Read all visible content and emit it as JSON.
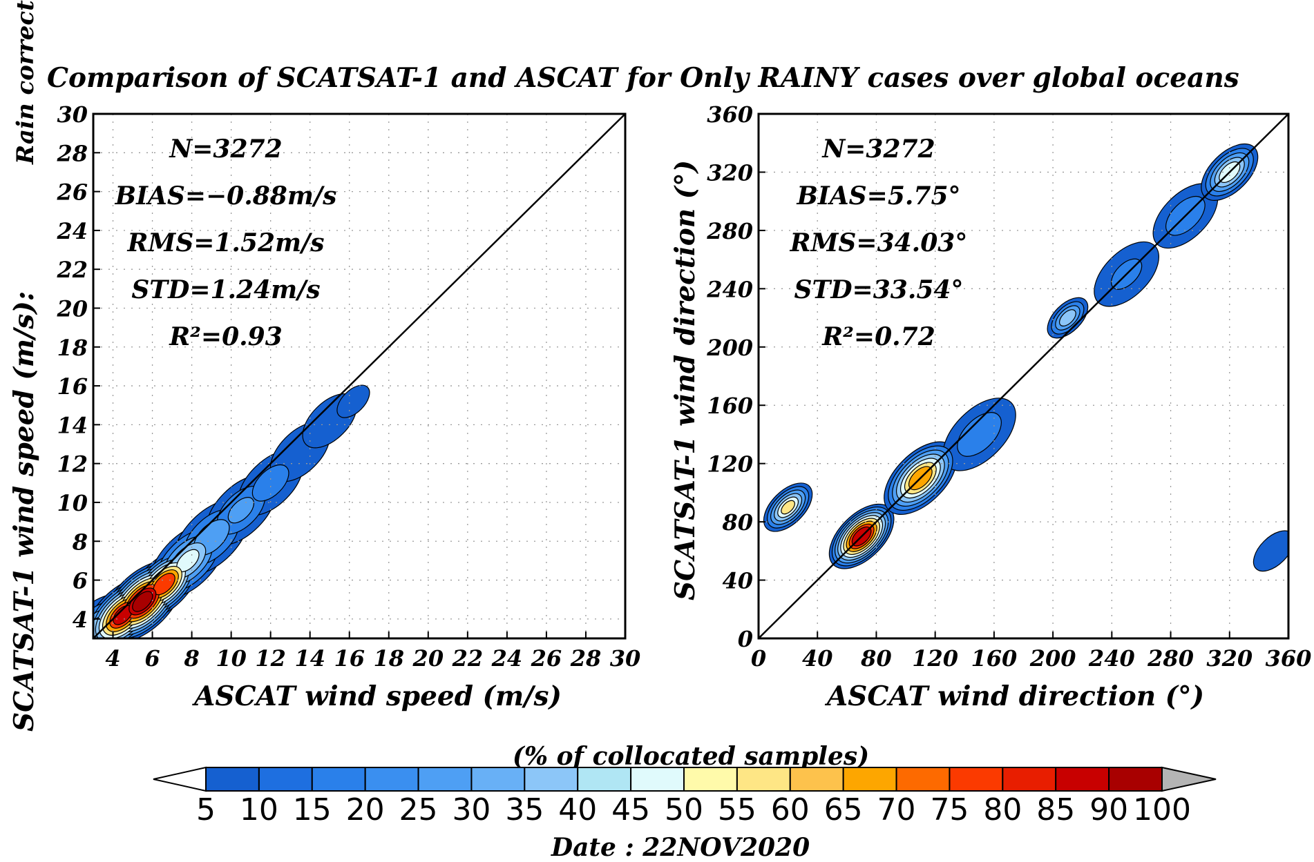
{
  "figure": {
    "suptitle": "Comparison of SCATSAT-1 and ASCAT for Only RAINY cases over global oceans",
    "side_label": "Rain corrected",
    "date_label": "Date : 22NOV2020"
  },
  "chart_data": [
    {
      "type": "heatmap",
      "name_id": "speed",
      "xlabel": "ASCAT wind speed (m/s)",
      "ylabel": "SCATSAT-1 wind speed (m/s):",
      "xlim": [
        3,
        30
      ],
      "ylim": [
        3,
        30
      ],
      "xticks": [
        "4",
        "6",
        "8",
        "10",
        "12",
        "14",
        "16",
        "18",
        "20",
        "22",
        "24",
        "26",
        "28",
        "30"
      ],
      "yticks": [
        "4",
        "6",
        "8",
        "10",
        "12",
        "14",
        "16",
        "18",
        "20",
        "22",
        "24",
        "26",
        "28",
        "30"
      ],
      "grid": true,
      "one_to_one_line": true,
      "stats": [
        "N=3272",
        "BIAS=−0.88m/s",
        "RMS=1.52m/s",
        "STD=1.24m/s",
        "R²=0.93"
      ],
      "density_ridge": [
        {
          "x": 3.2,
          "y": 3.6,
          "w": 1.2,
          "v": 35
        },
        {
          "x": 4.5,
          "y": 4.2,
          "w": 1.4,
          "v": 85
        },
        {
          "x": 5.5,
          "y": 4.9,
          "w": 1.5,
          "v": 95
        },
        {
          "x": 6.6,
          "y": 5.8,
          "w": 1.3,
          "v": 80
        },
        {
          "x": 7.8,
          "y": 7.0,
          "w": 1.4,
          "v": 45
        },
        {
          "x": 9.0,
          "y": 8.2,
          "w": 1.4,
          "v": 30
        },
        {
          "x": 10.5,
          "y": 9.6,
          "w": 1.3,
          "v": 25
        },
        {
          "x": 12.0,
          "y": 11.0,
          "w": 1.2,
          "v": 18
        },
        {
          "x": 13.5,
          "y": 12.6,
          "w": 1.1,
          "v": 12
        },
        {
          "x": 15.0,
          "y": 14.2,
          "w": 1.0,
          "v": 8
        },
        {
          "x": 16.2,
          "y": 15.2,
          "w": 0.6,
          "v": 5
        }
      ]
    },
    {
      "type": "heatmap",
      "name_id": "direction",
      "xlabel": "ASCAT wind direction (°)",
      "ylabel": "SCATSAT-1 wind direction (°)",
      "xlim": [
        0,
        360
      ],
      "ylim": [
        0,
        360
      ],
      "xticks": [
        "0",
        "40",
        "80",
        "120",
        "160",
        "200",
        "240",
        "280",
        "320",
        "360"
      ],
      "yticks": [
        "0",
        "40",
        "80",
        "120",
        "160",
        "200",
        "240",
        "280",
        "320",
        "360"
      ],
      "grid": true,
      "one_to_one_line": true,
      "stats": [
        "N=3272",
        "BIAS=5.75°",
        "RMS=34.03°",
        "STD=33.54°",
        "R²=0.72"
      ],
      "density_ridge": [
        {
          "x": 20,
          "y": 90,
          "w": 12,
          "v": 55
        },
        {
          "x": 70,
          "y": 70,
          "w": 16,
          "v": 90
        },
        {
          "x": 110,
          "y": 110,
          "w": 18,
          "v": 70
        },
        {
          "x": 150,
          "y": 140,
          "w": 18,
          "v": 20
        },
        {
          "x": 210,
          "y": 220,
          "w": 10,
          "v": 40
        },
        {
          "x": 250,
          "y": 250,
          "w": 16,
          "v": 15
        },
        {
          "x": 290,
          "y": 290,
          "w": 16,
          "v": 20
        },
        {
          "x": 320,
          "y": 320,
          "w": 14,
          "v": 50
        },
        {
          "x": 350,
          "y": 60,
          "w": 10,
          "v": 10
        }
      ]
    }
  ],
  "colorbar": {
    "title": "(% of collocated samples)",
    "labels": [
      "5",
      "10",
      "15",
      "20",
      "25",
      "30",
      "35",
      "40",
      "45",
      "50",
      "55",
      "60",
      "65",
      "70",
      "75",
      "80",
      "85",
      "90",
      "100"
    ],
    "colors": [
      "#1560d0",
      "#1e6fe0",
      "#2a80ea",
      "#3a8ff0",
      "#4e9ff4",
      "#68b0f6",
      "#8cc6f8",
      "#b0e6f4",
      "#e0fafc",
      "#fffaaa",
      "#fee685",
      "#fdc24c",
      "#fda600",
      "#fd6a00",
      "#fb3a00",
      "#e81e00",
      "#c80000",
      "#a80000"
    ],
    "under_color": "#ffffff",
    "over_color": "#b4b4b4"
  }
}
